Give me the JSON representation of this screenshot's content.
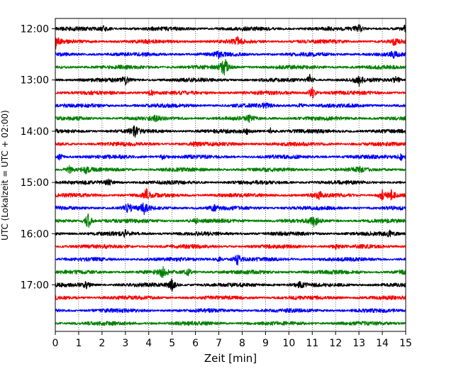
{
  "chart_data": {
    "type": "line",
    "title": "",
    "xlabel": "Zeit  [min]",
    "ylabel": "UTC (Lokalzeit = UTC + 02:00)",
    "xlim": [
      0,
      15
    ],
    "x_ticks": [
      "0",
      "1",
      "2",
      "3",
      "4",
      "5",
      "6",
      "7",
      "8",
      "9",
      "10",
      "11",
      "12",
      "13",
      "14",
      "15"
    ],
    "y_ticks": [
      "12:00",
      "13:00",
      "14:00",
      "15:00",
      "16:00",
      "17:00"
    ],
    "grid": "vertical dotted lines at each minute",
    "legend": "none",
    "trace_interval_min": 15,
    "color_cycle": [
      "#000000",
      "#ff0000",
      "#0000ff",
      "#008000"
    ],
    "series": [
      {
        "start": "12:00",
        "color": "#000000",
        "events": [
          [
            2.1,
            0.5
          ],
          [
            13.0,
            0.7
          ],
          [
            15.0,
            0.5
          ]
        ]
      },
      {
        "start": "12:15",
        "color": "#ff0000",
        "events": [
          [
            0.0,
            1.3
          ],
          [
            7.8,
            0.6
          ],
          [
            14.5,
            0.5
          ]
        ]
      },
      {
        "start": "12:30",
        "color": "#0000ff",
        "events": [
          [
            7.0,
            0.4
          ],
          [
            14.5,
            0.4
          ]
        ]
      },
      {
        "start": "12:45",
        "color": "#008000",
        "events": [
          [
            7.2,
            0.9
          ],
          [
            7.3,
            0.7
          ]
        ]
      },
      {
        "start": "13:00",
        "color": "#000000",
        "events": [
          [
            3.0,
            0.6
          ],
          [
            10.9,
            0.8
          ],
          [
            13.0,
            0.8
          ],
          [
            14.6,
            0.6
          ]
        ]
      },
      {
        "start": "13:15",
        "color": "#ff0000",
        "events": [
          [
            11.0,
            1.0
          ],
          [
            4.1,
            0.4
          ]
        ]
      },
      {
        "start": "13:30",
        "color": "#0000ff",
        "events": [
          [
            9.0,
            0.4
          ],
          [
            10.5,
            0.3
          ]
        ]
      },
      {
        "start": "13:45",
        "color": "#008000",
        "events": [
          [
            4.3,
            0.4
          ],
          [
            8.3,
            0.4
          ]
        ]
      },
      {
        "start": "14:00",
        "color": "#000000",
        "events": [
          [
            3.4,
            1.0
          ],
          [
            8.2,
            0.4
          ],
          [
            9.2,
            0.5
          ]
        ]
      },
      {
        "start": "14:15",
        "color": "#ff0000",
        "events": [
          [
            6.0,
            0.3
          ]
        ]
      },
      {
        "start": "14:30",
        "color": "#0000ff",
        "events": [
          [
            0.2,
            0.5
          ],
          [
            4.6,
            0.4
          ],
          [
            14.8,
            0.5
          ]
        ]
      },
      {
        "start": "14:45",
        "color": "#008000",
        "events": [
          [
            0.6,
            0.6
          ],
          [
            1.3,
            0.5
          ],
          [
            13.0,
            0.4
          ]
        ]
      },
      {
        "start": "15:00",
        "color": "#000000",
        "events": [
          [
            2.3,
            0.5
          ]
        ]
      },
      {
        "start": "15:15",
        "color": "#ff0000",
        "events": [
          [
            3.9,
            0.9
          ],
          [
            11.3,
            0.5
          ],
          [
            14.0,
            0.8
          ],
          [
            14.4,
            1.0
          ]
        ]
      },
      {
        "start": "15:30",
        "color": "#0000ff",
        "events": [
          [
            3.1,
            1.0
          ],
          [
            3.8,
            0.9
          ],
          [
            6.8,
            0.4
          ]
        ]
      },
      {
        "start": "15:45",
        "color": "#008000",
        "events": [
          [
            1.4,
            1.4
          ],
          [
            11.1,
            1.1
          ],
          [
            6.0,
            0.4
          ]
        ]
      },
      {
        "start": "16:00",
        "color": "#000000",
        "events": [
          [
            3.0,
            0.4
          ],
          [
            14.3,
            0.4
          ]
        ]
      },
      {
        "start": "16:15",
        "color": "#ff0000",
        "events": [
          [
            12.0,
            0.3
          ]
        ]
      },
      {
        "start": "16:30",
        "color": "#0000ff",
        "events": [
          [
            7.8,
            0.9
          ],
          [
            7.0,
            0.4
          ]
        ]
      },
      {
        "start": "16:45",
        "color": "#008000",
        "events": [
          [
            4.6,
            0.9
          ],
          [
            5.7,
            0.5
          ],
          [
            14.8,
            0.4
          ]
        ]
      },
      {
        "start": "17:00",
        "color": "#000000",
        "events": [
          [
            1.3,
            0.6
          ],
          [
            5.0,
            1.0
          ],
          [
            10.5,
            0.7
          ]
        ]
      },
      {
        "start": "17:15",
        "color": "#ff0000",
        "events": []
      },
      {
        "start": "17:30",
        "color": "#0000ff",
        "events": []
      },
      {
        "start": "17:45",
        "color": "#008000",
        "events": []
      }
    ]
  }
}
